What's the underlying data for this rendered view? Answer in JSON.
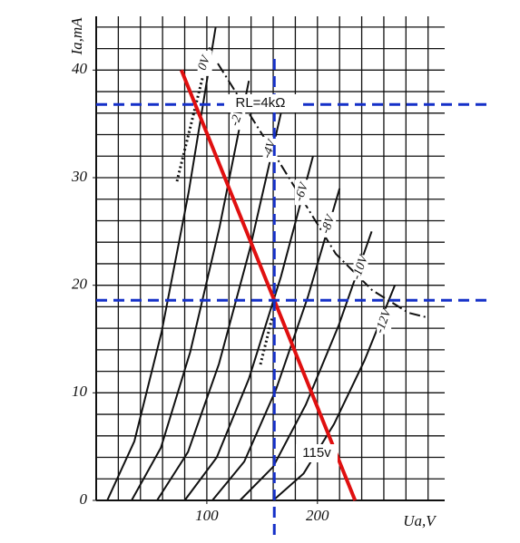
{
  "chart_data": {
    "type": "line",
    "x_label": "Ua,V",
    "y_label": "Ia,mA",
    "xlim": [
      0,
      315
    ],
    "ylim": [
      0,
      45
    ],
    "xticks": [
      100,
      200
    ],
    "yticks": [
      0,
      10,
      20,
      30,
      40
    ],
    "x_grid": [
      20,
      40,
      60,
      80,
      100,
      120,
      140,
      160,
      180,
      200,
      220,
      240,
      260,
      280,
      300
    ],
    "y_grid": [
      2,
      4,
      6,
      8,
      10,
      12,
      14,
      16,
      18,
      20,
      22,
      24,
      26,
      28,
      30,
      32,
      34,
      36,
      38,
      40,
      42,
      44
    ],
    "grid": true,
    "series": [
      {
        "name": "0V",
        "color": "#111111",
        "x": [
          10,
          34.5,
          59,
          83.5,
          108
        ],
        "values": [
          0,
          5.5,
          15.6,
          28.6,
          44
        ]
      },
      {
        "name": "-2V",
        "color": "#111111",
        "x": [
          32,
          58.5,
          85,
          111.5,
          138
        ],
        "values": [
          0,
          4.9,
          13.8,
          25.4,
          39
        ]
      },
      {
        "name": "-4V",
        "color": "#111111",
        "x": [
          55,
          83,
          111,
          139,
          167
        ],
        "values": [
          0,
          4.5,
          12.7,
          23.4,
          36
        ]
      },
      {
        "name": "-6V",
        "color": "#111111",
        "x": [
          80,
          109,
          138,
          167,
          196
        ],
        "values": [
          0,
          4,
          11.3,
          20.8,
          32
        ]
      },
      {
        "name": "-8V",
        "color": "#111111",
        "x": [
          105,
          133.8,
          162.5,
          191.3,
          220
        ],
        "values": [
          0,
          3.6,
          10.3,
          18.9,
          29
        ]
      },
      {
        "name": "-10V",
        "color": "#111111",
        "x": [
          130,
          159.8,
          189.5,
          219.3,
          249
        ],
        "values": [
          0,
          3.1,
          8.9,
          16.3,
          25
        ]
      },
      {
        "name": "-12V",
        "color": "#111111",
        "x": [
          160,
          187.5,
          215,
          242.5,
          270
        ],
        "values": [
          0,
          2.5,
          7.1,
          13,
          20
        ]
      }
    ],
    "load_line": {
      "label": "RL=4kΩ",
      "color": "#e01010",
      "x": [
        77,
        234
      ],
      "values": [
        40,
        0
      ]
    },
    "reference_lines": {
      "color": "#1530c8",
      "x": [
        161
      ],
      "y": [
        36.8,
        18.6
      ]
    },
    "annotation": "115v"
  }
}
